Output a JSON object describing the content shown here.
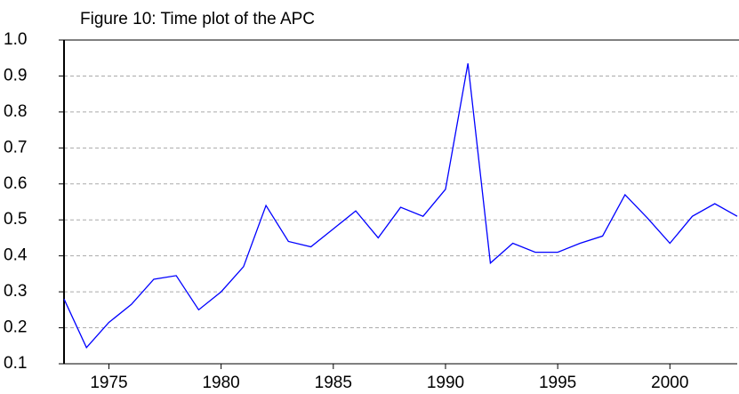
{
  "chart_data": {
    "type": "line",
    "title": "Figure 10: Time plot of the APC",
    "x": [
      1973,
      1974,
      1975,
      1976,
      1977,
      1978,
      1979,
      1980,
      1981,
      1982,
      1983,
      1984,
      1985,
      1986,
      1987,
      1988,
      1989,
      1990,
      1991,
      1992,
      1993,
      1994,
      1995,
      1996,
      1997,
      1998,
      1999,
      2000,
      2001,
      2002,
      2003
    ],
    "series": [
      {
        "name": "APC",
        "color": "#0000ff",
        "values": [
          0.28,
          0.145,
          0.215,
          0.265,
          0.335,
          0.345,
          0.25,
          0.3,
          0.37,
          0.54,
          0.44,
          0.425,
          0.475,
          0.525,
          0.45,
          0.535,
          0.51,
          0.585,
          0.935,
          0.38,
          0.435,
          0.41,
          0.41,
          0.435,
          0.455,
          0.57,
          0.505,
          0.435,
          0.51,
          0.545,
          0.51
        ]
      }
    ],
    "xlim": [
      1973,
      2003
    ],
    "xticks": [
      1975,
      1980,
      1985,
      1990,
      1995,
      2000
    ],
    "ylim": [
      0.1,
      1.0
    ],
    "yticks": [
      0.1,
      0.2,
      0.3,
      0.4,
      0.5,
      0.6,
      0.7,
      0.8,
      0.9,
      {
        "value": 1,
        "label": "1.0"
      }
    ],
    "grid": true
  }
}
